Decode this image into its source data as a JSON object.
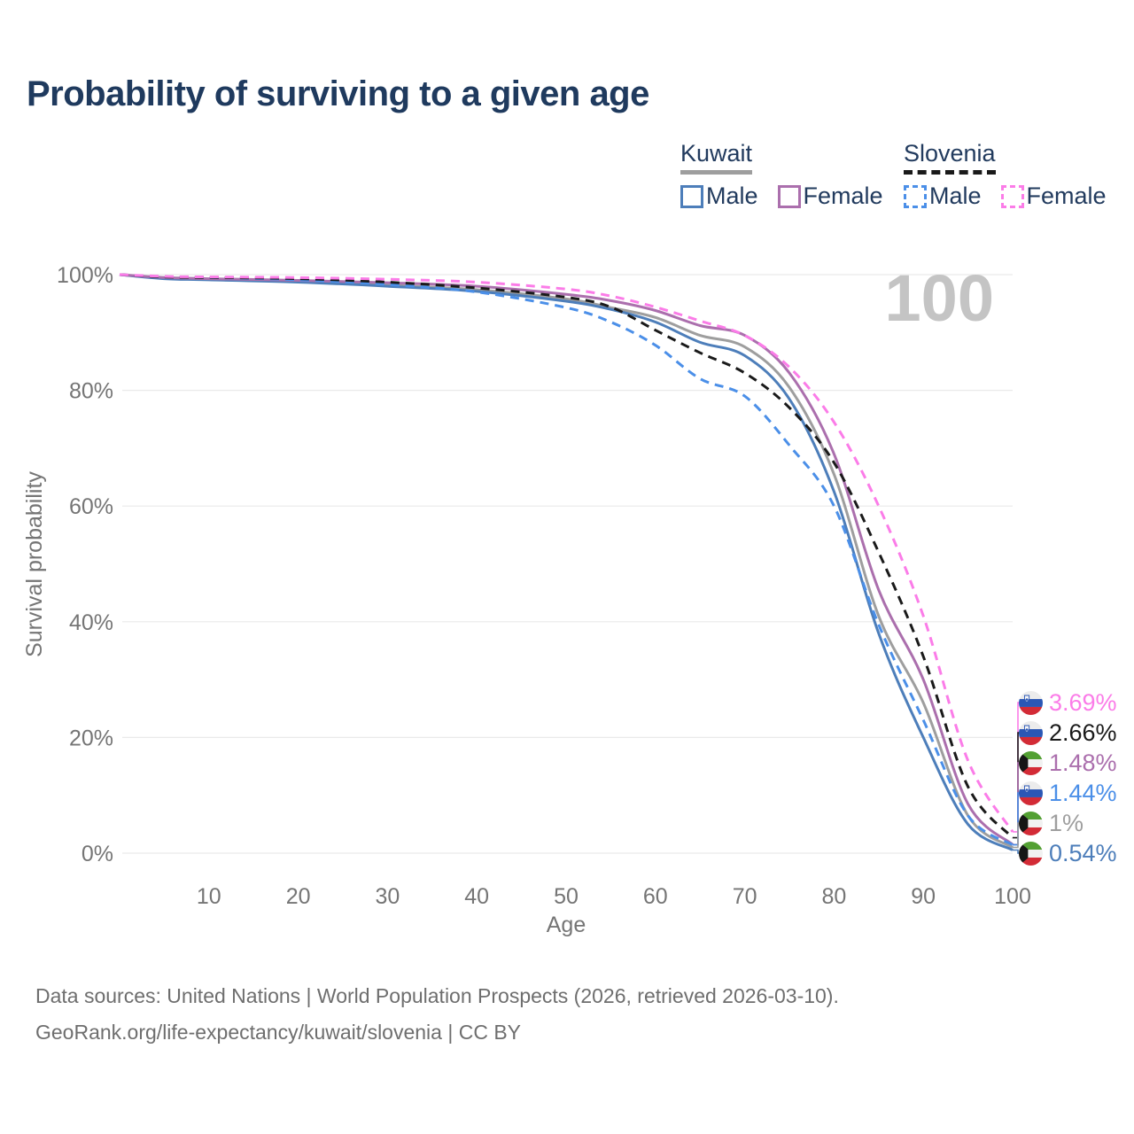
{
  "title": "Probability of surviving to a given age",
  "legend": {
    "groups": [
      {
        "label": "Kuwait",
        "line_style": "solid",
        "line_color": "#9e9e9e",
        "items": [
          {
            "label": "Male",
            "color": "#4d7eba",
            "style": "solid"
          },
          {
            "label": "Female",
            "color": "#ab6fad",
            "style": "solid"
          }
        ]
      },
      {
        "label": "Slovenia",
        "line_style": "dashed",
        "line_color": "#1a1a1a",
        "items": [
          {
            "label": "Male",
            "color": "#4b8fe8",
            "style": "dashed"
          },
          {
            "label": "Female",
            "color": "#fb7ce8",
            "style": "dashed"
          }
        ]
      }
    ]
  },
  "chart_data": {
    "type": "line",
    "title": "Probability of surviving to a given age",
    "xlabel": "Age",
    "ylabel": "Survival probability",
    "xlim": [
      0,
      100
    ],
    "ylim": [
      0,
      100
    ],
    "grid": "horizontal",
    "age_display": "100",
    "x_ticks": [
      10,
      20,
      30,
      40,
      50,
      60,
      70,
      80,
      90,
      100
    ],
    "y_ticks": [
      {
        "value": 0,
        "label": "0%"
      },
      {
        "value": 20,
        "label": "20%"
      },
      {
        "value": 40,
        "label": "40%"
      },
      {
        "value": 60,
        "label": "60%"
      },
      {
        "value": 80,
        "label": "80%"
      },
      {
        "value": 100,
        "label": "100%"
      }
    ],
    "ages": [
      0,
      5,
      10,
      20,
      30,
      40,
      50,
      55,
      60,
      65,
      70,
      75,
      80,
      85,
      90,
      95,
      100
    ],
    "series": [
      {
        "id": "kuwait-total",
        "name": "Kuwait Both sexes",
        "country": "Kuwait",
        "sex": "Both",
        "color": "#9e9e9e",
        "style": "solid",
        "values": [
          100,
          99.4,
          99.2,
          98.8,
          98.2,
          97.4,
          95.8,
          94.3,
          92.6,
          89.5,
          87.5,
          80.5,
          65.5,
          41.0,
          26.0,
          6.5,
          1.0
        ]
      },
      {
        "id": "kuwait-male",
        "name": "Kuwait Male",
        "country": "Kuwait",
        "sex": "Male",
        "color": "#4d7eba",
        "style": "solid",
        "values": [
          100,
          99.3,
          99.1,
          98.7,
          98.0,
          97.1,
          95.4,
          94.0,
          91.8,
          88.3,
          86.0,
          78.5,
          62.5,
          38.0,
          20.0,
          5.0,
          0.54
        ]
      },
      {
        "id": "kuwait-female",
        "name": "Kuwait Female",
        "country": "Kuwait",
        "sex": "Female",
        "color": "#ab6fad",
        "style": "solid",
        "values": [
          100,
          99.5,
          99.3,
          99.0,
          98.6,
          98.0,
          96.6,
          95.5,
          93.8,
          91.2,
          89.5,
          83.0,
          69.0,
          45.5,
          30.0,
          8.5,
          1.48
        ]
      },
      {
        "id": "slovenia-male",
        "name": "Slovenia Male",
        "country": "Slovenia",
        "sex": "Male",
        "color": "#4b8fe8",
        "style": "dashed",
        "values": [
          100,
          99.6,
          99.5,
          99.1,
          98.3,
          97.0,
          94.3,
          91.8,
          87.8,
          82.0,
          79.0,
          70.5,
          60.0,
          39.5,
          23.0,
          6.5,
          1.44
        ]
      },
      {
        "id": "slovenia-total",
        "name": "Slovenia Both sexes",
        "country": "Slovenia",
        "sex": "Both",
        "color": "#1a1a1a",
        "style": "dashed",
        "values": [
          100,
          99.6,
          99.5,
          99.3,
          98.7,
          97.7,
          96.1,
          94.4,
          90.4,
          86.5,
          83.0,
          77.0,
          67.5,
          52.0,
          34.0,
          11.5,
          2.66
        ]
      },
      {
        "id": "slovenia-female",
        "name": "Slovenia Female",
        "country": "Slovenia",
        "sex": "Female",
        "color": "#fb7ce8",
        "style": "dashed",
        "values": [
          100,
          99.7,
          99.6,
          99.5,
          99.2,
          98.7,
          97.5,
          96.3,
          94.4,
          92.0,
          89.5,
          84.0,
          74.5,
          60.0,
          41.0,
          16.0,
          3.69
        ]
      }
    ]
  },
  "end_labels": [
    {
      "series": "slovenia-female",
      "flag": "slovenia",
      "text": "3.69%",
      "value": 3.69,
      "color": "#fb7ce8"
    },
    {
      "series": "slovenia-total",
      "flag": "slovenia",
      "text": "2.66%",
      "value": 2.66,
      "color": "#1a1a1a"
    },
    {
      "series": "kuwait-female",
      "flag": "kuwait",
      "text": "1.48%",
      "value": 1.48,
      "color": "#ab6fad"
    },
    {
      "series": "slovenia-male",
      "flag": "slovenia",
      "text": "1.44%",
      "value": 1.44,
      "color": "#4b8fe8"
    },
    {
      "series": "kuwait-total",
      "flag": "kuwait",
      "text": "1%",
      "value": 1.0,
      "color": "#9e9e9e"
    },
    {
      "series": "kuwait-male",
      "flag": "kuwait",
      "text": "0.54%",
      "value": 0.54,
      "color": "#4d7eba"
    }
  ],
  "footer": {
    "line1": "Data sources: United Nations | World Population Prospects (2026, retrieved 2026-03-10).",
    "line2": "GeoRank.org/life-expectancy/kuwait/slovenia | CC BY"
  }
}
